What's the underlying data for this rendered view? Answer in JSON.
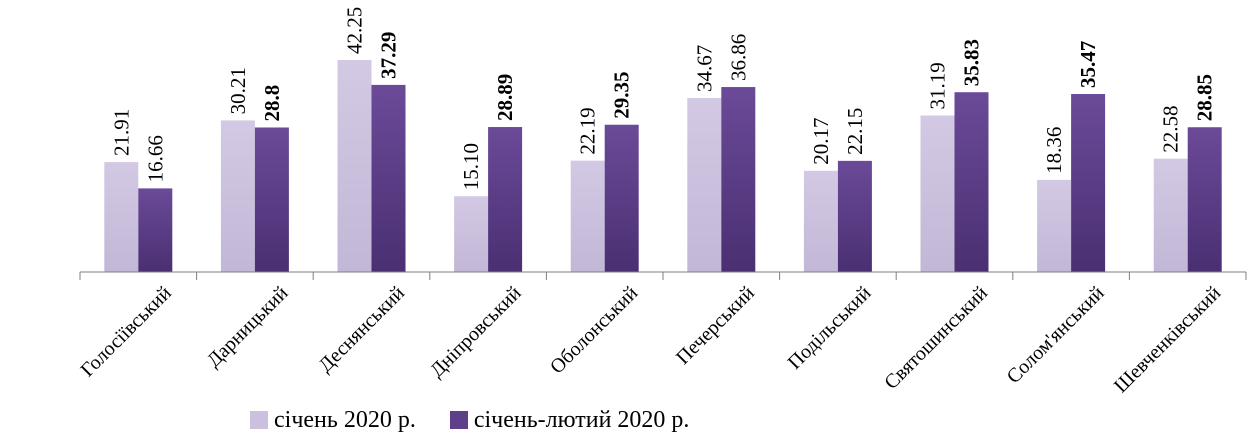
{
  "chart_data": {
    "type": "bar",
    "categories": [
      "Голосіївський",
      "Дарницький",
      "Деснянський",
      "Дніпровський",
      "Оболонський",
      "Печерський",
      "Подільський",
      "Святошинський",
      "Солом'янський",
      "Шевченківський"
    ],
    "series": [
      {
        "name": "січень 2020 р.",
        "values": [
          21.91,
          30.21,
          42.25,
          15.1,
          22.19,
          34.67,
          20.17,
          31.19,
          18.36,
          22.58
        ],
        "labels": [
          "21.91",
          "30.21",
          "42.25",
          "15.10",
          "22.19",
          "34.67",
          "20.17",
          "31.19",
          "18.36",
          "22.58"
        ],
        "label_bold": [
          false,
          false,
          false,
          false,
          false,
          false,
          false,
          false,
          false,
          false
        ],
        "color": "#cbc0dd"
      },
      {
        "name": "січень-лютий 2020 р.",
        "values": [
          16.66,
          28.8,
          37.29,
          28.89,
          29.35,
          36.86,
          22.15,
          35.83,
          35.47,
          28.85
        ],
        "labels": [
          "16.66",
          "28.8",
          "37.29",
          "28.89",
          "29.35",
          "36.86",
          "22.15",
          "35.83",
          "35.47",
          "28.85"
        ],
        "label_bold": [
          false,
          true,
          true,
          true,
          true,
          false,
          false,
          true,
          true,
          true
        ],
        "color": "#5f3f8a"
      }
    ],
    "ylim": [
      0,
      42.25
    ],
    "grid": false,
    "legend_position": "bottom"
  }
}
